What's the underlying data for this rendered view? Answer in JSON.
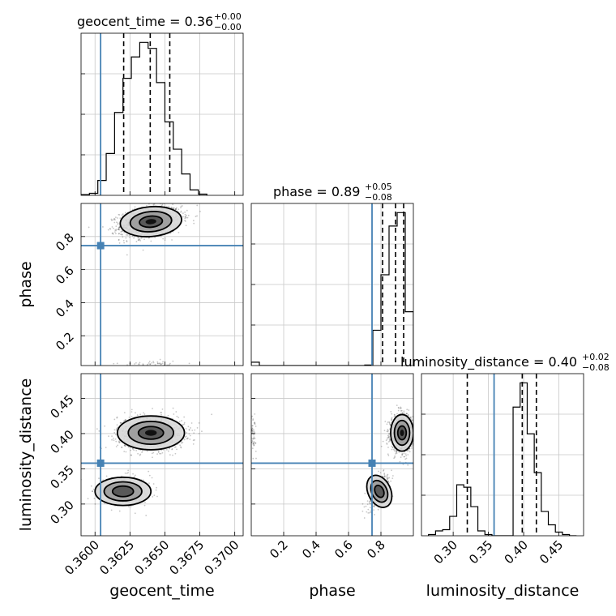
{
  "chart_data": [
    {
      "panel": "geocent_time-hist",
      "type": "histogram",
      "title": {
        "param": "geocent_time",
        "value": "0.36",
        "plus": "+0.00",
        "minus": "−0.00"
      },
      "xlim": [
        0.359,
        0.3706
      ],
      "xticks": [
        0.36,
        0.3625,
        0.365,
        0.3675,
        0.37
      ],
      "xtick_labels": [
        "0.3600",
        "0.3625",
        "0.3650",
        "0.3675",
        "0.3700"
      ],
      "xlabel": "geocent_time",
      "bins": [
        0.359,
        0.3596,
        0.3602,
        0.3608,
        0.3614,
        0.362,
        0.3626,
        0.3632,
        0.3638,
        0.3644,
        0.365,
        0.3656,
        0.3662,
        0.3668,
        0.3674,
        0.368
      ],
      "counts": [
        0.4,
        1.2,
        8.7,
        24.5,
        48.5,
        68.5,
        81,
        89.5,
        86,
        66,
        43,
        27,
        12.5,
        3.2,
        0.7
      ],
      "quantile_lines": [
        0.36205,
        0.36395,
        0.36535
      ],
      "truth": 0.3604,
      "truth_color": "#4682b4"
    },
    {
      "panel": "phase-hist",
      "type": "histogram",
      "title": {
        "param": "phase",
        "value": "0.89",
        "plus": "+0.05",
        "minus": "−0.08"
      },
      "xlim": [
        0.0,
        1.0
      ],
      "xticks": [
        0.2,
        0.4,
        0.6,
        0.8
      ],
      "xtick_labels": [
        "0.2",
        "0.4",
        "0.6",
        "0.8"
      ],
      "xlabel": "phase",
      "bins": [
        0.0,
        0.05,
        0.1,
        0.15,
        0.2,
        0.25,
        0.3,
        0.35,
        0.4,
        0.45,
        0.5,
        0.55,
        0.6,
        0.65,
        0.7,
        0.75,
        0.8,
        0.85,
        0.9,
        0.95,
        1.0
      ],
      "counts": [
        2,
        0,
        0,
        0,
        0,
        0,
        0,
        0,
        0,
        0,
        0,
        0,
        0,
        0,
        0.3,
        21,
        54,
        83,
        91,
        32
      ],
      "quantile_lines": [
        0.81,
        0.89,
        0.94
      ],
      "truth": 0.745,
      "truth_color": "#4682b4"
    },
    {
      "panel": "luminosity_distance-hist",
      "type": "histogram",
      "title": {
        "param": "luminosity_distance",
        "value": "0.40",
        "plus": "+0.02",
        "minus": "−0.08"
      },
      "xlim": [
        0.255,
        0.485
      ],
      "xticks": [
        0.3,
        0.35,
        0.4,
        0.45
      ],
      "xtick_labels": [
        "0.30",
        "0.35",
        "0.40",
        "0.45"
      ],
      "xlabel": "luminosity_distance",
      "bins": [
        0.265,
        0.275,
        0.285,
        0.295,
        0.305,
        0.315,
        0.325,
        0.335,
        0.345,
        0.355,
        0.365,
        0.375,
        0.385,
        0.395,
        0.405,
        0.415,
        0.425,
        0.435,
        0.445,
        0.455,
        0.465,
        0.475
      ],
      "counts": [
        0.5,
        2,
        2.5,
        8,
        21,
        20,
        12,
        2,
        0.5,
        0,
        0,
        0,
        53,
        63,
        42,
        26,
        10,
        4.5,
        1.5,
        0.5,
        0
      ],
      "quantile_lines": [
        0.32,
        0.398,
        0.418
      ],
      "truth": 0.358,
      "truth_color": "#4682b4"
    },
    {
      "panel": "geocent_time-vs-phase",
      "type": "scatter-density",
      "x_param": "geocent_time",
      "y_param": "phase",
      "xlim": [
        0.359,
        0.3706
      ],
      "ylim": [
        0.02,
        1.0
      ],
      "yticks": [
        0.2,
        0.4,
        0.6,
        0.8
      ],
      "ytick_labels": [
        "0.2",
        "0.4",
        "0.6",
        "0.8"
      ],
      "ylabel": "phase",
      "clusters": [
        {
          "cx": 0.364,
          "cy": 0.89,
          "sx": 0.0011,
          "sy": 0.045,
          "weight": 0.97,
          "corr": 0.3
        },
        {
          "cx": 0.364,
          "cy": 0.03,
          "sx": 0.0011,
          "sy": 0.01,
          "weight": 0.03,
          "corr": 0
        }
      ],
      "truth": [
        0.3604,
        0.745
      ],
      "truth_color": "#4682b4"
    },
    {
      "panel": "geocent_time-vs-luminosity_distance",
      "type": "scatter-density",
      "x_param": "geocent_time",
      "y_param": "luminosity_distance",
      "xlim": [
        0.359,
        0.3706
      ],
      "ylim": [
        0.255,
        0.485
      ],
      "yticks": [
        0.3,
        0.35,
        0.4,
        0.45
      ],
      "ytick_labels": [
        "0.30",
        "0.35",
        "0.40",
        "0.45"
      ],
      "ylabel": "luminosity_distance",
      "clusters": [
        {
          "cx": 0.364,
          "cy": 0.401,
          "sx": 0.0012,
          "sy": 0.012,
          "weight": 0.76,
          "corr": 0
        },
        {
          "cx": 0.362,
          "cy": 0.318,
          "sx": 0.001,
          "sy": 0.01,
          "weight": 0.24,
          "corr": 0
        }
      ],
      "truth": [
        0.3604,
        0.358
      ],
      "truth_color": "#4682b4"
    },
    {
      "panel": "phase-vs-luminosity_distance",
      "type": "scatter-density",
      "x_param": "phase",
      "y_param": "luminosity_distance",
      "xlim": [
        0.0,
        1.0
      ],
      "ylim": [
        0.255,
        0.485
      ],
      "clusters": [
        {
          "cx": 0.93,
          "cy": 0.401,
          "sx": 0.035,
          "sy": 0.013,
          "weight": 0.72,
          "corr": 0
        },
        {
          "cx": 0.79,
          "cy": 0.318,
          "sx": 0.035,
          "sy": 0.012,
          "weight": 0.24,
          "corr": 0.6
        },
        {
          "cx": 0.01,
          "cy": 0.4,
          "sx": 0.01,
          "sy": 0.013,
          "weight": 0.04,
          "corr": 0
        }
      ],
      "truth": [
        0.745,
        0.358
      ],
      "truth_color": "#4682b4"
    }
  ]
}
